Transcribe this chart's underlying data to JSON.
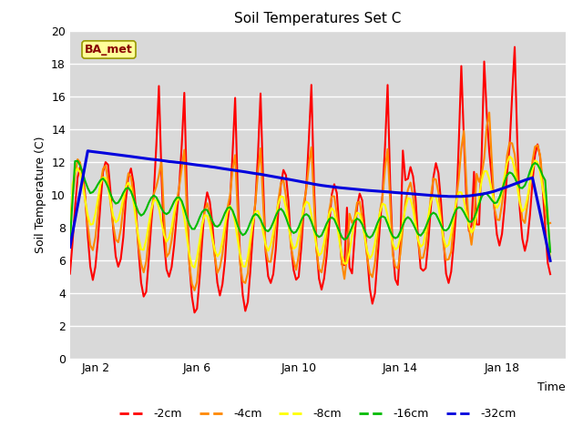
{
  "title": "Soil Temperatures Set C",
  "xlabel": "Time",
  "ylabel": "Soil Temperature (C)",
  "ylim": [
    0,
    20
  ],
  "ytick_values": [
    0,
    2,
    4,
    6,
    8,
    10,
    12,
    14,
    16,
    18,
    20
  ],
  "plot_bg_color": "#d9d9d9",
  "annotation_text": "BA_met",
  "annotation_bg": "#ffff99",
  "annotation_border": "#999900",
  "annotation_text_color": "#880000",
  "legend_labels": [
    "-2cm",
    "-4cm",
    "-8cm",
    "-16cm",
    "-32cm"
  ],
  "legend_colors": [
    "#ff0000",
    "#ff8800",
    "#ffff00",
    "#00bb00",
    "#0000dd"
  ],
  "xtick_labels": [
    "Jan 2",
    "Jan 6",
    "Jan 10",
    "Jan 14",
    "Jan 18"
  ],
  "xtick_positions": [
    1,
    5,
    9,
    13,
    17
  ],
  "xlim": [
    0,
    19.5
  ],
  "n_days": 19,
  "time_step": 0.1
}
